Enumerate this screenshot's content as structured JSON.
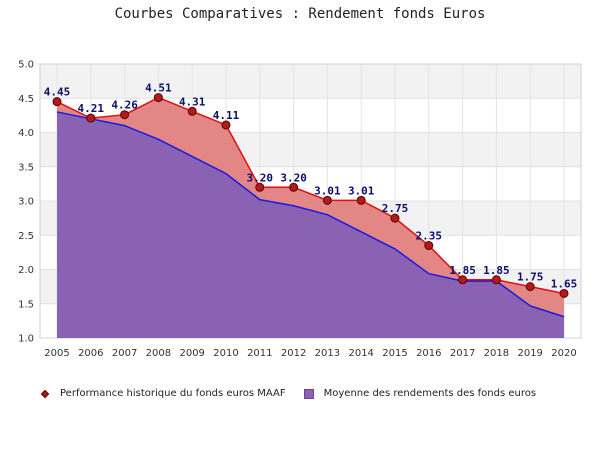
{
  "chart_data": {
    "type": "area",
    "title": "Courbes Comparatives : Rendement fonds Euros",
    "x": [
      "2005",
      "2006",
      "2007",
      "2008",
      "2009",
      "2010",
      "2011",
      "2012",
      "2013",
      "2014",
      "2015",
      "2016",
      "2017",
      "2018",
      "2019",
      "2020"
    ],
    "ylim": [
      1.0,
      5.0
    ],
    "yticks": [
      "1.0",
      "1.5",
      "2.0",
      "2.5",
      "3.0",
      "3.5",
      "4.0",
      "4.5",
      "5.0"
    ],
    "grid": true,
    "legend_position": "bottom",
    "series": [
      {
        "name": "Performance historique du fonds euros MAAF",
        "color": "#e01010",
        "fill": "#e08080",
        "marker": "#b51a1a",
        "values": [
          4.45,
          4.21,
          4.26,
          4.51,
          4.31,
          4.11,
          3.2,
          3.2,
          3.01,
          3.01,
          2.75,
          2.35,
          1.85,
          1.85,
          1.75,
          1.65
        ],
        "labels": [
          "4.45",
          "4.21",
          "4.26",
          "4.51",
          "4.31",
          "4.11",
          "3.20",
          "3.20",
          "3.01",
          "3.01",
          "2.75",
          "2.35",
          "1.85",
          "1.85",
          "1.75",
          "1.65"
        ]
      },
      {
        "name": "Moyenne des rendements des fonds euros",
        "color": "#1a1ae0",
        "fill": "#8a62b4",
        "values": [
          4.3,
          4.2,
          4.1,
          3.9,
          3.65,
          3.4,
          3.02,
          2.93,
          2.8,
          2.55,
          2.3,
          1.94,
          1.83,
          1.83,
          1.47,
          1.31
        ]
      }
    ]
  }
}
